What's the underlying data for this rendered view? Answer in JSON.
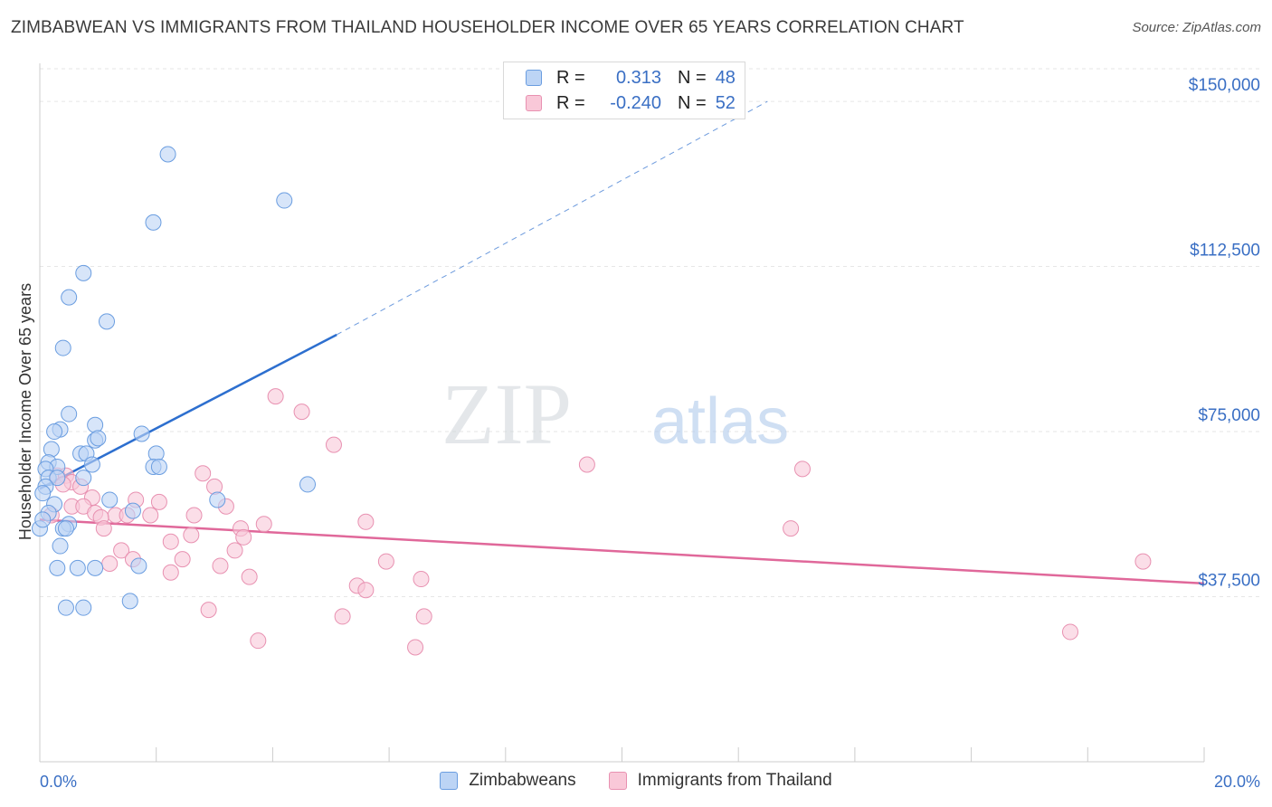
{
  "title": "ZIMBABWEAN VS IMMIGRANTS FROM THAILAND HOUSEHOLDER INCOME OVER 65 YEARS CORRELATION CHART",
  "source": "Source: ZipAtlas.com",
  "watermark": {
    "zip": "ZIP",
    "atlas": "atlas"
  },
  "legend": {
    "r_label": "R =",
    "n_label": "N =",
    "rows": [
      {
        "r": "0.313",
        "n": "48"
      },
      {
        "r": "-0.240",
        "n": "52"
      }
    ]
  },
  "colors": {
    "series1_fill": "#bcd4f5",
    "series1_stroke": "#6a9de0",
    "series1_line": "#2d6fcf",
    "series2_fill": "#f9c8d8",
    "series2_stroke": "#e891b1",
    "series2_line": "#e0689a",
    "tick_color": "#3a6fc4",
    "grid": "#e6e6e6"
  },
  "chart_data": {
    "type": "scatter",
    "title": "ZIMBABWEAN VS IMMIGRANTS FROM THAILAND HOUSEHOLDER INCOME OVER 65 YEARS CORRELATION CHART",
    "xlabel": "",
    "ylabel": "Householder Income Over 65 years",
    "xlim": [
      0,
      20
    ],
    "ylim": [
      0,
      157000
    ],
    "x_tick_labels": [
      "0.0%",
      "20.0%"
    ],
    "y_ticks": [
      37500,
      75000,
      112500,
      150000
    ],
    "y_tick_labels": [
      "$37,500",
      "$75,000",
      "$112,500",
      "$150,000"
    ],
    "grid": true,
    "legend_position": "bottom-center",
    "series": [
      {
        "name": "Zimbabweans",
        "r": 0.313,
        "n": 48,
        "trend": {
          "x0": 0.0,
          "y0": 62000,
          "x1": 5.1,
          "y1": 97000,
          "dashed_to_x": 12.5,
          "dashed_to_y": 150000
        },
        "points": [
          [
            2.2,
            138000
          ],
          [
            4.2,
            127500
          ],
          [
            1.95,
            122500
          ],
          [
            0.75,
            111000
          ],
          [
            0.5,
            105500
          ],
          [
            1.15,
            100000
          ],
          [
            0.4,
            94000
          ],
          [
            0.5,
            79000
          ],
          [
            0.35,
            75500
          ],
          [
            0.25,
            75000
          ],
          [
            0.95,
            76500
          ],
          [
            1.75,
            74500
          ],
          [
            0.95,
            73000
          ],
          [
            1.0,
            73500
          ],
          [
            0.2,
            71000
          ],
          [
            0.7,
            70000
          ],
          [
            0.8,
            70000
          ],
          [
            2.0,
            70000
          ],
          [
            0.15,
            68000
          ],
          [
            0.3,
            67000
          ],
          [
            0.9,
            67500
          ],
          [
            1.95,
            67000
          ],
          [
            2.05,
            67000
          ],
          [
            0.1,
            66500
          ],
          [
            0.15,
            64500
          ],
          [
            0.3,
            64500
          ],
          [
            0.75,
            64500
          ],
          [
            4.6,
            63000
          ],
          [
            0.1,
            62500
          ],
          [
            0.05,
            61000
          ],
          [
            0.25,
            58500
          ],
          [
            1.2,
            59500
          ],
          [
            3.05,
            59500
          ],
          [
            1.6,
            57000
          ],
          [
            0.15,
            56500
          ],
          [
            0.5,
            54000
          ],
          [
            0.4,
            53000
          ],
          [
            0.45,
            53000
          ],
          [
            0.0,
            53000
          ],
          [
            0.35,
            49000
          ],
          [
            1.7,
            44500
          ],
          [
            0.3,
            44000
          ],
          [
            0.65,
            44000
          ],
          [
            0.95,
            44000
          ],
          [
            1.55,
            36500
          ],
          [
            0.45,
            35000
          ],
          [
            0.75,
            35000
          ],
          [
            0.05,
            55000
          ]
        ]
      },
      {
        "name": "Immigrants from Thailand",
        "r": -0.24,
        "n": 52,
        "trend": {
          "x0": 0.0,
          "y0": 55000,
          "x1": 20.0,
          "y1": 40500
        },
        "points": [
          [
            4.05,
            83000
          ],
          [
            4.5,
            79500
          ],
          [
            5.05,
            72000
          ],
          [
            9.4,
            67500
          ],
          [
            13.1,
            66500
          ],
          [
            2.8,
            65500
          ],
          [
            0.3,
            65000
          ],
          [
            0.45,
            65000
          ],
          [
            0.55,
            63500
          ],
          [
            0.4,
            63000
          ],
          [
            0.7,
            62500
          ],
          [
            3.0,
            62500
          ],
          [
            0.9,
            60000
          ],
          [
            1.65,
            59500
          ],
          [
            2.05,
            59000
          ],
          [
            0.55,
            58000
          ],
          [
            0.75,
            58000
          ],
          [
            3.2,
            58000
          ],
          [
            0.95,
            56500
          ],
          [
            1.3,
            56000
          ],
          [
            1.5,
            56000
          ],
          [
            1.9,
            56000
          ],
          [
            2.65,
            56000
          ],
          [
            0.2,
            56000
          ],
          [
            1.05,
            55500
          ],
          [
            3.85,
            54000
          ],
          [
            5.6,
            54500
          ],
          [
            3.45,
            53000
          ],
          [
            1.1,
            53000
          ],
          [
            12.9,
            53000
          ],
          [
            2.6,
            51500
          ],
          [
            3.5,
            51000
          ],
          [
            2.25,
            50000
          ],
          [
            1.4,
            48000
          ],
          [
            3.35,
            48000
          ],
          [
            2.45,
            46000
          ],
          [
            1.6,
            46000
          ],
          [
            1.2,
            45000
          ],
          [
            5.95,
            45500
          ],
          [
            18.95,
            45500
          ],
          [
            3.1,
            44500
          ],
          [
            2.25,
            43000
          ],
          [
            3.6,
            42000
          ],
          [
            6.55,
            41500
          ],
          [
            5.45,
            40000
          ],
          [
            5.6,
            39000
          ],
          [
            2.9,
            34500
          ],
          [
            5.2,
            33000
          ],
          [
            6.6,
            33000
          ],
          [
            3.75,
            27500
          ],
          [
            17.7,
            29500
          ],
          [
            6.45,
            26000
          ]
        ]
      }
    ]
  }
}
